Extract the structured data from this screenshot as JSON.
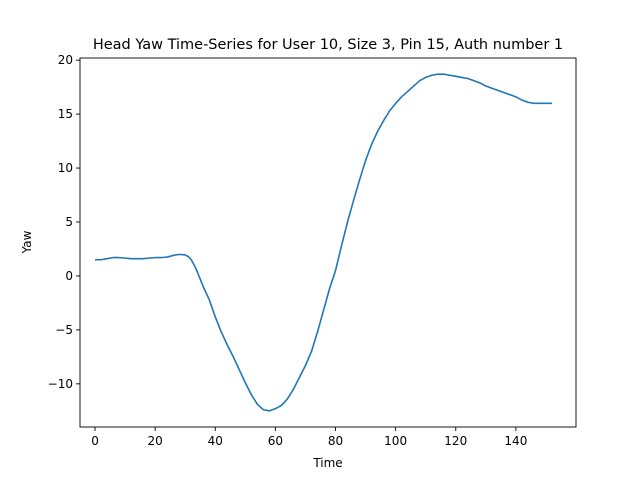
{
  "chart_data": {
    "type": "line",
    "title": "Head Yaw Time-Series for User 10, Size 3, Pin 15, Auth number 1",
    "xlabel": "Time",
    "ylabel": "Yaw",
    "xlim": [
      -5,
      160
    ],
    "ylim": [
      -14,
      20.2
    ],
    "xticks": [
      0,
      20,
      40,
      60,
      80,
      100,
      120,
      140
    ],
    "yticks": [
      -10,
      -5,
      0,
      5,
      10,
      15,
      20
    ],
    "grid": false,
    "line_color": "#1f77b4",
    "series": [
      {
        "x": [
          0,
          2,
          4,
          6,
          8,
          10,
          12,
          14,
          16,
          18,
          20,
          22,
          24,
          26,
          28,
          30,
          31,
          32,
          33,
          34,
          35,
          36,
          38,
          40,
          42,
          44,
          46,
          48,
          50,
          52,
          54,
          56,
          58,
          60,
          62,
          64,
          66,
          68,
          70,
          72,
          74,
          76,
          78,
          80,
          82,
          84,
          86,
          88,
          90,
          92,
          94,
          96,
          98,
          100,
          102,
          104,
          106,
          108,
          110,
          112,
          114,
          116,
          118,
          120,
          122,
          124,
          126,
          128,
          130,
          132,
          134,
          136,
          138,
          140,
          142,
          144,
          146,
          148,
          150,
          152
        ],
        "y": [
          1.5,
          1.5,
          1.6,
          1.7,
          1.7,
          1.65,
          1.6,
          1.6,
          1.6,
          1.65,
          1.7,
          1.7,
          1.75,
          1.9,
          2.0,
          1.95,
          1.8,
          1.5,
          1.0,
          0.4,
          -0.3,
          -1.0,
          -2.2,
          -3.8,
          -5.2,
          -6.4,
          -7.5,
          -8.7,
          -9.9,
          -11.0,
          -11.9,
          -12.4,
          -12.5,
          -12.3,
          -12.0,
          -11.4,
          -10.5,
          -9.4,
          -8.3,
          -7.0,
          -5.2,
          -3.2,
          -1.2,
          0.5,
          2.8,
          5.0,
          7.0,
          8.9,
          10.7,
          12.2,
          13.4,
          14.4,
          15.3,
          16.0,
          16.6,
          17.1,
          17.6,
          18.1,
          18.4,
          18.6,
          18.7,
          18.7,
          18.6,
          18.5,
          18.4,
          18.3,
          18.1,
          17.9,
          17.6,
          17.4,
          17.2,
          17.0,
          16.8,
          16.6,
          16.3,
          16.1,
          16.0,
          16.0,
          16.0,
          16.0
        ]
      }
    ]
  }
}
